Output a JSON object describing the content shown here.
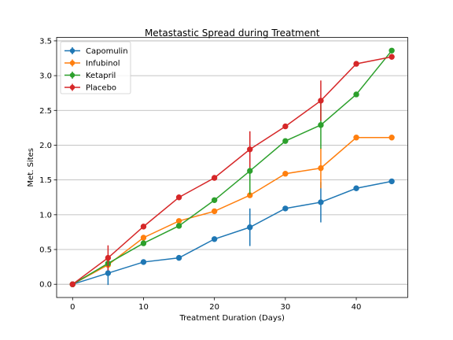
{
  "chart_data": {
    "type": "line",
    "title": "Metastastic Spread during Treatment",
    "xlabel": "Treatment Duration (Days)",
    "ylabel": "Met. Sites",
    "xlim": [
      -2.25,
      47.25
    ],
    "ylim": [
      -0.19,
      3.55
    ],
    "xticks": [
      0,
      10,
      20,
      30,
      40
    ],
    "yticks": [
      0.0,
      0.5,
      1.0,
      1.5,
      2.0,
      2.5,
      3.0,
      3.5
    ],
    "ytick_labels": [
      "0.0",
      "0.5",
      "1.0",
      "1.5",
      "2.0",
      "2.5",
      "3.0",
      "3.5"
    ],
    "grid": "horizontal",
    "legend_position": "top-left",
    "x": [
      0,
      5,
      10,
      15,
      20,
      25,
      30,
      35,
      40,
      45
    ],
    "series": [
      {
        "name": "Capomulin",
        "color": "#1f77b4",
        "marker": "circle",
        "values": [
          0.0,
          0.16,
          0.32,
          0.38,
          0.65,
          0.82,
          1.09,
          1.18,
          1.38,
          1.48
        ],
        "errors": [
          0.0,
          0.17,
          0.0,
          0.0,
          0.0,
          0.27,
          0.0,
          0.29,
          0.0,
          0.0
        ]
      },
      {
        "name": "Infubinol",
        "color": "#ff7f0e",
        "marker": "circle",
        "values": [
          0.0,
          0.28,
          0.67,
          0.91,
          1.05,
          1.28,
          1.59,
          1.67,
          2.11,
          2.11
        ],
        "errors": [
          0.0,
          0.0,
          0.0,
          0.0,
          0.0,
          0.0,
          0.0,
          0.29,
          0.0,
          0.0
        ]
      },
      {
        "name": "Ketapril",
        "color": "#2ca02c",
        "marker": "circle",
        "values": [
          0.0,
          0.3,
          0.59,
          0.84,
          1.21,
          1.63,
          2.06,
          2.29,
          2.73,
          3.36
        ],
        "errors": [
          0.0,
          0.0,
          0.0,
          0.0,
          0.0,
          0.34,
          0.0,
          0.34,
          0.0,
          0.0
        ]
      },
      {
        "name": "Placebo",
        "color": "#d62728",
        "marker": "circle",
        "values": [
          0.0,
          0.38,
          0.83,
          1.25,
          1.53,
          1.94,
          2.27,
          2.64,
          3.17,
          3.27
        ],
        "errors": [
          0.0,
          0.18,
          0.0,
          0.0,
          0.0,
          0.26,
          0.0,
          0.29,
          0.0,
          0.0
        ]
      }
    ]
  }
}
